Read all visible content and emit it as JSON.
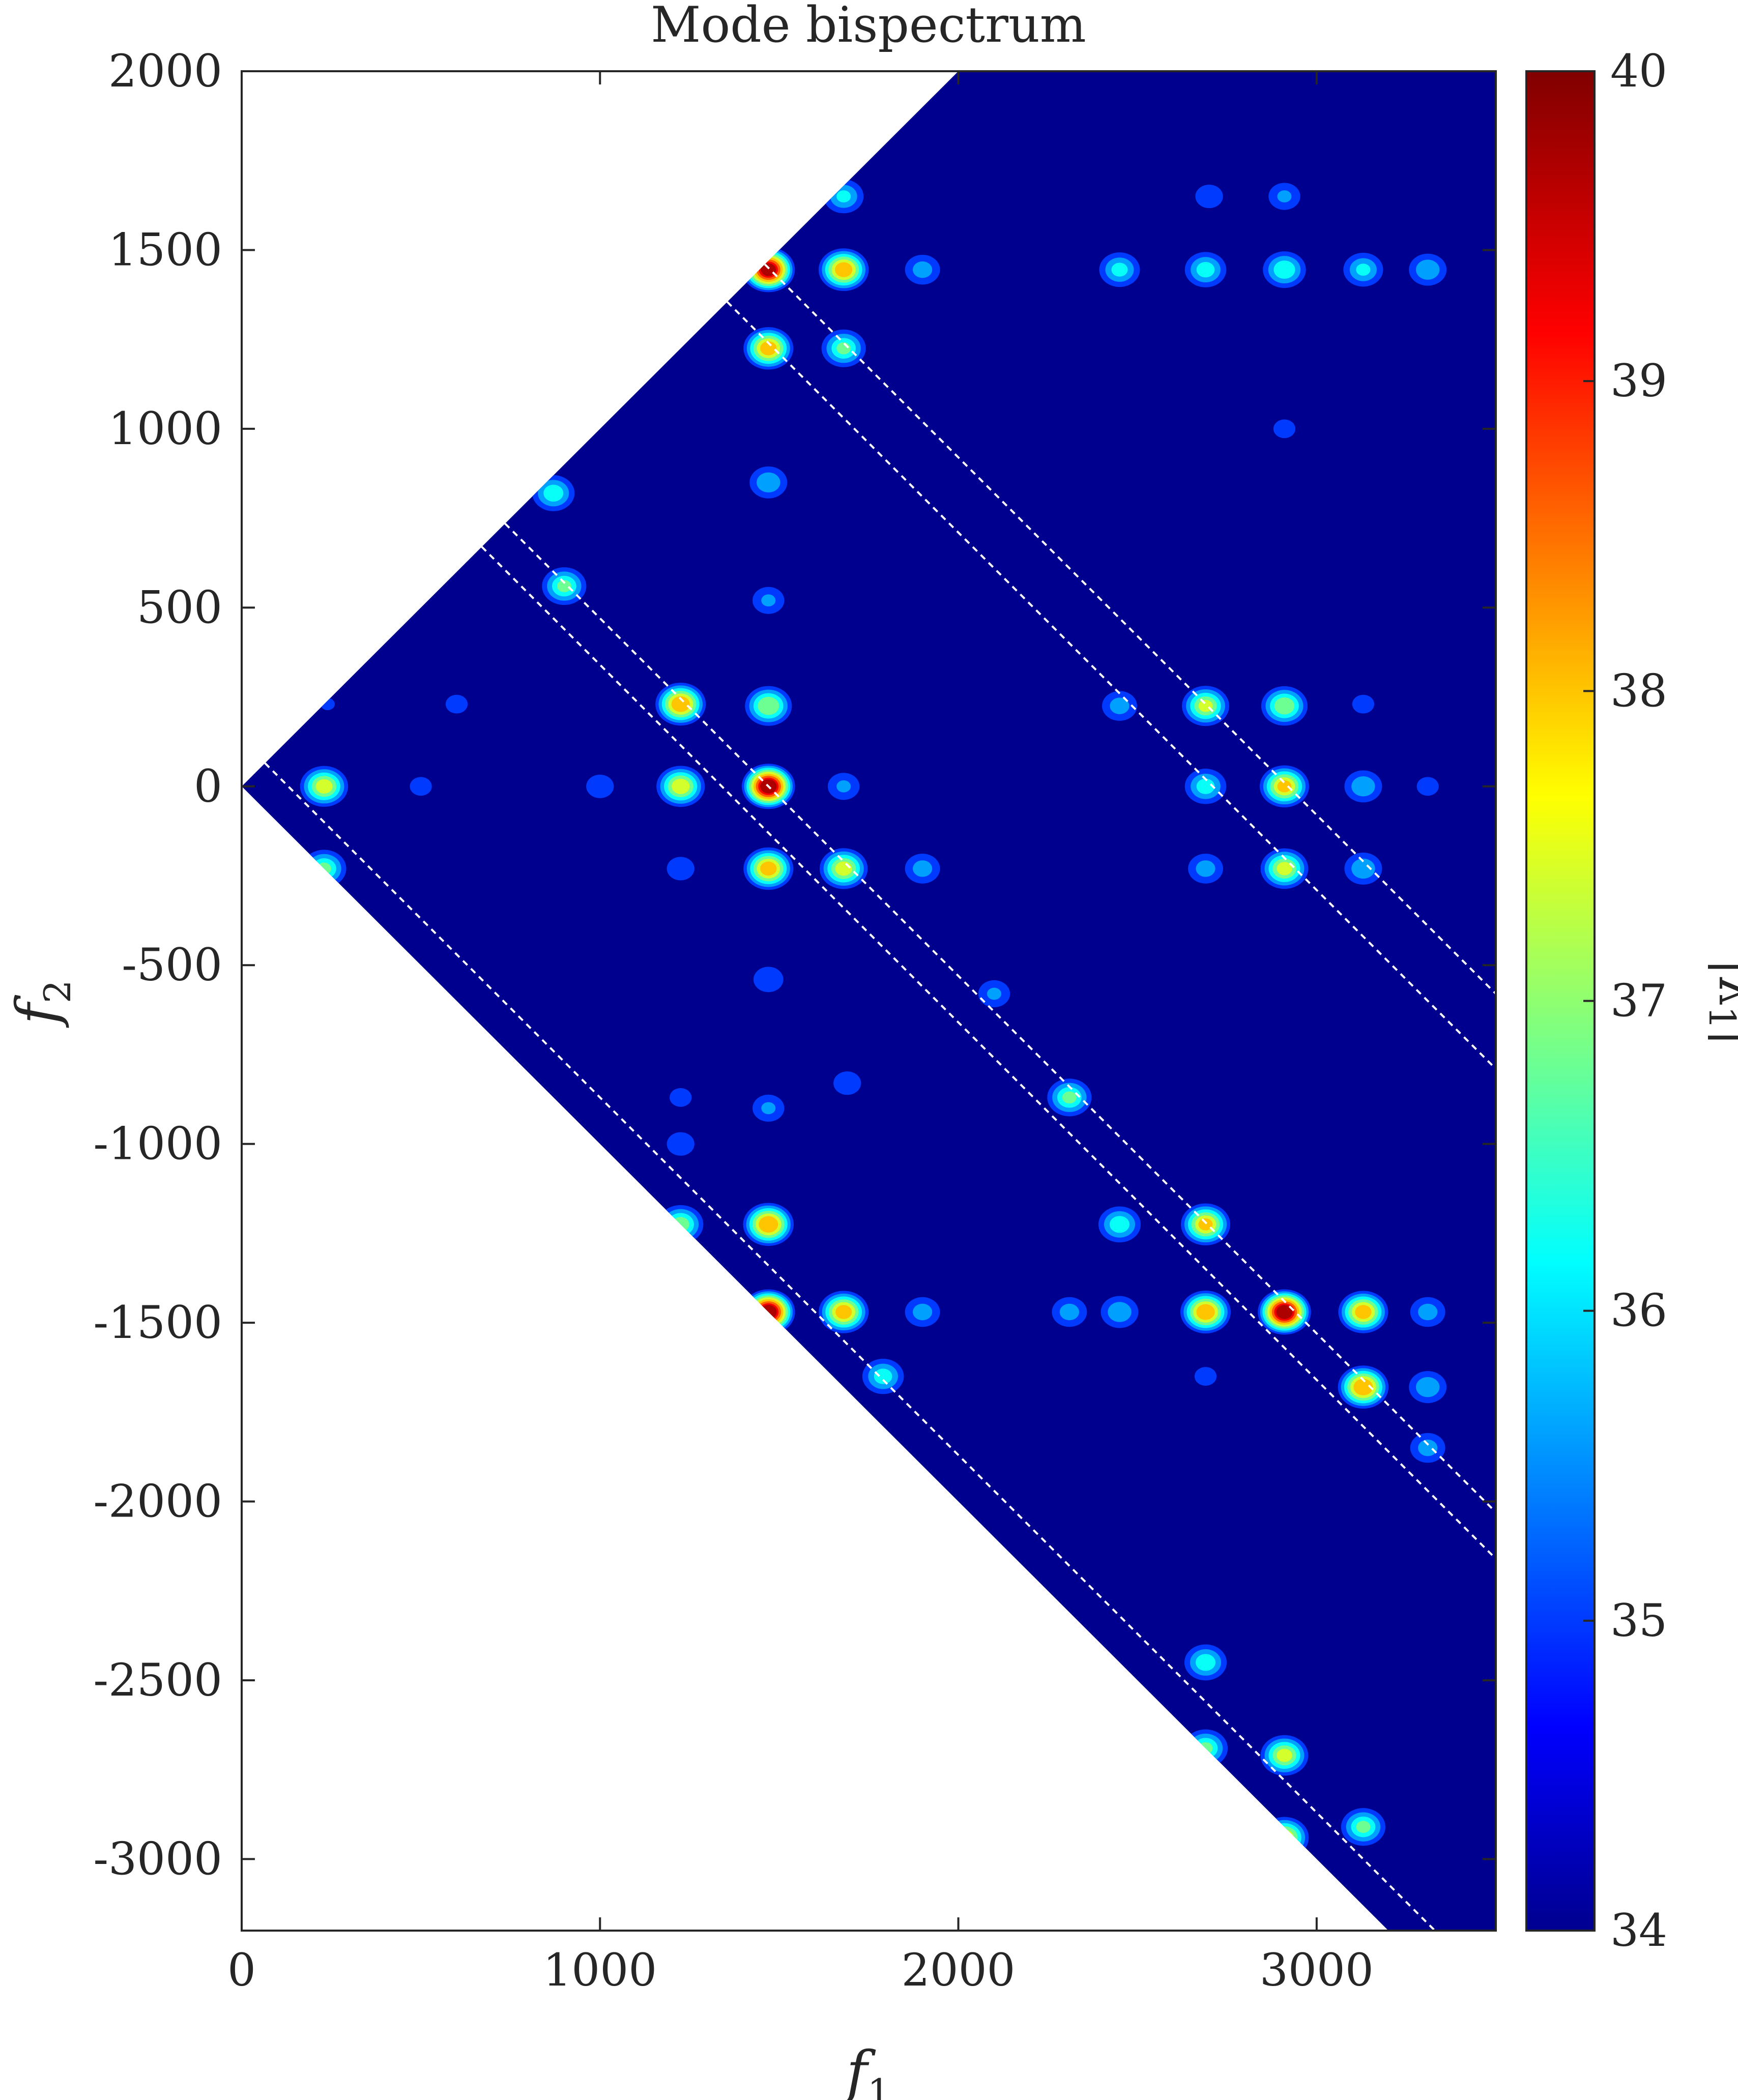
{
  "chart_data": {
    "type": "heatmap",
    "title": "Mode bispectrum",
    "xlabel": "f",
    "xlabel_sub": "1",
    "ylabel": "f",
    "ylabel_sub": "2",
    "xlim": [
      0,
      3500
    ],
    "ylim": [
      -3200,
      2000
    ],
    "x_ticks": [
      "0",
      "1000",
      "2000",
      "3000"
    ],
    "x_tick_values": [
      0,
      1000,
      2000,
      3000
    ],
    "y_ticks": [
      "2000",
      "1500",
      "1000",
      "500",
      "0",
      "-500",
      "-1000",
      "-1500",
      "-2000",
      "-2500",
      "-3000"
    ],
    "y_tick_values": [
      2000,
      1500,
      1000,
      500,
      0,
      -500,
      -1000,
      -1500,
      -2000,
      -2500,
      -3000
    ],
    "colorbar": {
      "label": "|λ1|",
      "label_main": "|λ",
      "label_sub": "1",
      "label_end": "|",
      "colormap": "jet",
      "range": [
        34,
        40
      ],
      "ticks": [
        "40",
        "39",
        "38",
        "37",
        "36",
        "35",
        "34"
      ],
      "tick_values": [
        40,
        39,
        38,
        37,
        36,
        35,
        34
      ]
    },
    "domain": "triangular region bounded by f2 = f1 and f2 = -f1",
    "background_value": 34,
    "peaks": [
      {
        "f1": 1470,
        "f2": 1445,
        "value": 39.8
      },
      {
        "f1": 1470,
        "f2": -1470,
        "value": 40.0
      },
      {
        "f1": 1470,
        "f2": 0,
        "value": 40.0
      },
      {
        "f1": 2910,
        "f2": -1470,
        "value": 40.0
      },
      {
        "f1": 1680,
        "f2": 1445,
        "value": 38.3
      },
      {
        "f1": 1470,
        "f2": 1225,
        "value": 38.2
      },
      {
        "f1": 1225,
        "f2": 230,
        "value": 38.4
      },
      {
        "f1": 1470,
        "f2": 225,
        "value": 37.3
      },
      {
        "f1": 1225,
        "f2": 0,
        "value": 37.7
      },
      {
        "f1": 1470,
        "f2": -230,
        "value": 38.2
      },
      {
        "f1": 1680,
        "f2": -230,
        "value": 37.6
      },
      {
        "f1": 2910,
        "f2": 0,
        "value": 38.0
      },
      {
        "f1": 2690,
        "f2": 225,
        "value": 37.4
      },
      {
        "f1": 2910,
        "f2": 225,
        "value": 37.2
      },
      {
        "f1": 2910,
        "f2": -230,
        "value": 37.5
      },
      {
        "f1": 1470,
        "f2": -1225,
        "value": 38.5
      },
      {
        "f1": 1680,
        "f2": -1470,
        "value": 38.2
      },
      {
        "f1": 2690,
        "f2": -1225,
        "value": 38.0
      },
      {
        "f1": 2690,
        "f2": -1470,
        "value": 38.4
      },
      {
        "f1": 3130,
        "f2": -1470,
        "value": 38.2
      },
      {
        "f1": 3130,
        "f2": -1680,
        "value": 38.5
      },
      {
        "f1": 1225,
        "f2": -1225,
        "value": 37.0
      },
      {
        "f1": 230,
        "f2": 0,
        "value": 37.6
      },
      {
        "f1": 230,
        "f2": -230,
        "value": 36.8
      },
      {
        "f1": 870,
        "f2": 820,
        "value": 36.5
      },
      {
        "f1": 900,
        "f2": 560,
        "value": 36.8
      },
      {
        "f1": 2910,
        "f2": -2710,
        "value": 37.5
      },
      {
        "f1": 2910,
        "f2": -2940,
        "value": 37.8
      },
      {
        "f1": 3130,
        "f2": -2910,
        "value": 36.8
      },
      {
        "f1": 2690,
        "f2": -2450,
        "value": 36.5
      },
      {
        "f1": 2690,
        "f2": -2690,
        "value": 36.8
      },
      {
        "f1": 2310,
        "f2": -870,
        "value": 36.8
      },
      {
        "f1": 2450,
        "f2": -1225,
        "value": 36.5
      },
      {
        "f1": 1680,
        "f2": 1225,
        "value": 36.8
      },
      {
        "f1": 1680,
        "f2": 1650,
        "value": 36.2
      },
      {
        "f1": 2690,
        "f2": 1445,
        "value": 36.4
      },
      {
        "f1": 2910,
        "f2": 1445,
        "value": 36.6
      },
      {
        "f1": 2450,
        "f2": 1445,
        "value": 36.3
      },
      {
        "f1": 3130,
        "f2": 1445,
        "value": 36.2
      },
      {
        "f1": 3310,
        "f2": 1445,
        "value": 36.0
      },
      {
        "f1": 1470,
        "f2": 850,
        "value": 36.0
      },
      {
        "f1": 1900,
        "f2": 1445,
        "value": 35.8
      },
      {
        "f1": 1470,
        "f2": 520,
        "value": 35.6
      },
      {
        "f1": 2910,
        "f2": 1650,
        "value": 35.6
      },
      {
        "f1": 2910,
        "f2": 1000,
        "value": 35.2
      },
      {
        "f1": 2700,
        "f2": 1650,
        "value": 35.4
      },
      {
        "f1": 3130,
        "f2": 0,
        "value": 36.0
      },
      {
        "f1": 3130,
        "f2": -230,
        "value": 36.0
      },
      {
        "f1": 2690,
        "f2": 0,
        "value": 36.4
      },
      {
        "f1": 2690,
        "f2": -230,
        "value": 35.8
      },
      {
        "f1": 2450,
        "f2": 225,
        "value": 35.8
      },
      {
        "f1": 3310,
        "f2": -1680,
        "value": 36.0
      },
      {
        "f1": 3310,
        "f2": -1470,
        "value": 35.8
      },
      {
        "f1": 3310,
        "f2": -1850,
        "value": 35.8
      },
      {
        "f1": 2450,
        "f2": -1470,
        "value": 36.0
      },
      {
        "f1": 2310,
        "f2": -1470,
        "value": 35.8
      },
      {
        "f1": 1900,
        "f2": -1470,
        "value": 35.8
      },
      {
        "f1": 1790,
        "f2": -1650,
        "value": 36.4
      },
      {
        "f1": 1900,
        "f2": -230,
        "value": 35.8
      },
      {
        "f1": 2100,
        "f2": -580,
        "value": 35.6
      },
      {
        "f1": 1680,
        "f2": 0,
        "value": 35.6
      },
      {
        "f1": 1000,
        "f2": 0,
        "value": 35.4
      },
      {
        "f1": 500,
        "f2": 0,
        "value": 35.2
      },
      {
        "f1": 600,
        "f2": 230,
        "value": 35.2
      },
      {
        "f1": 240,
        "f2": 230,
        "value": 35.0
      },
      {
        "f1": 1470,
        "f2": -540,
        "value": 35.5
      },
      {
        "f1": 1470,
        "f2": -900,
        "value": 35.6
      },
      {
        "f1": 1690,
        "f2": -830,
        "value": 35.4
      },
      {
        "f1": 1225,
        "f2": -1000,
        "value": 35.4
      },
      {
        "f1": 1225,
        "f2": -870,
        "value": 35.2
      },
      {
        "f1": 1225,
        "f2": -230,
        "value": 35.4
      },
      {
        "f1": 3130,
        "f2": 230,
        "value": 35.2
      },
      {
        "f1": 3310,
        "f2": 0,
        "value": 35.2
      },
      {
        "f1": 2690,
        "f2": -1650,
        "value": 35.2
      }
    ],
    "dashed_lines": [
      {
        "f1_plus_f2": 130
      },
      {
        "f1_plus_f2": 1340
      },
      {
        "f1_plus_f2": 1470
      },
      {
        "f1_plus_f2": 2710
      },
      {
        "f1_plus_f2": 2920
      }
    ]
  }
}
